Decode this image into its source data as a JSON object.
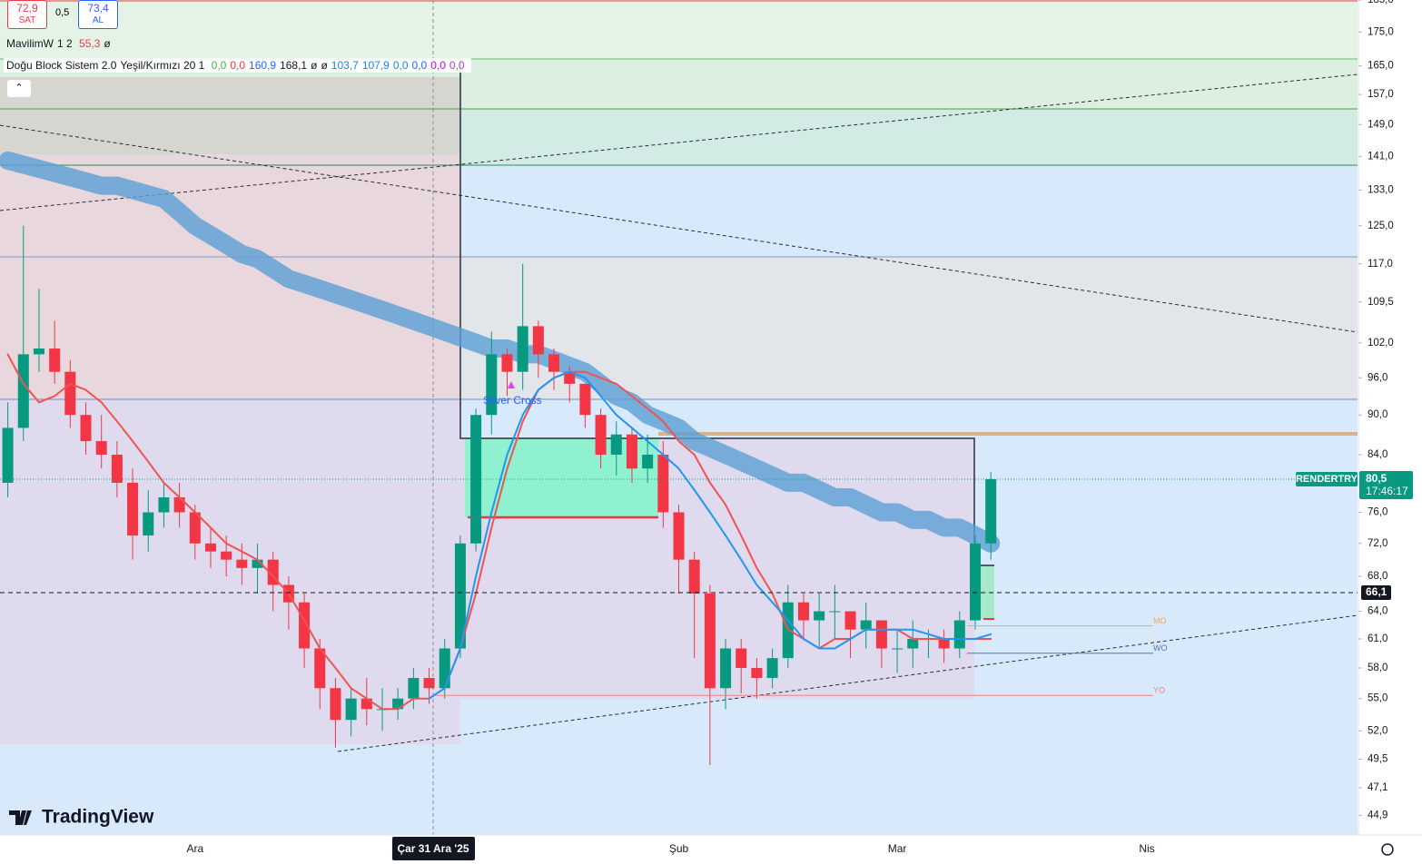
{
  "chart_data": {
    "type": "candlestick",
    "symbol": "RENDERTRY",
    "categories": [
      null,
      null,
      null,
      null,
      null,
      null,
      null,
      null,
      null,
      null,
      null,
      null,
      "Ara",
      null,
      null,
      null,
      null,
      null,
      null,
      null,
      null,
      null,
      null,
      null,
      null,
      null,
      null,
      "Çar 31 Ara '25",
      null,
      null,
      null,
      null,
      null,
      null,
      null,
      null,
      null,
      null,
      null,
      null,
      null,
      null,
      null,
      "Şub",
      null,
      null,
      null,
      null,
      null,
      null,
      null,
      null,
      null,
      null,
      null,
      null,
      null,
      "Mar",
      null,
      null,
      null,
      null,
      null,
      null,
      null,
      null,
      null,
      null,
      null,
      null,
      null,
      null,
      null,
      "Nis",
      null,
      null,
      null,
      null,
      null,
      null,
      null,
      null,
      null,
      null,
      null,
      null,
      null
    ],
    "open": [
      80,
      88,
      100,
      101,
      97,
      90,
      86,
      84,
      80,
      73,
      76,
      78,
      76,
      72,
      71,
      70,
      69,
      70,
      67,
      65,
      60,
      56,
      53,
      55,
      54,
      54,
      55,
      57,
      56,
      60,
      72,
      90,
      100,
      97,
      105,
      100,
      97,
      95,
      90,
      84,
      87,
      82,
      84,
      76,
      70,
      66,
      56,
      60,
      58,
      57,
      59,
      65,
      63,
      64,
      64,
      62,
      63,
      60,
      60,
      61,
      61,
      60,
      63,
      72,
      null,
      null,
      null,
      null,
      null,
      null,
      null,
      null,
      null,
      null,
      null,
      null,
      null,
      null,
      null,
      null,
      null,
      null,
      null,
      null,
      null,
      null,
      null
    ],
    "high": [
      92,
      125,
      112,
      106,
      99,
      92,
      90,
      86,
      82,
      79,
      80,
      80,
      77,
      74,
      73,
      72,
      72,
      71,
      68,
      66,
      61,
      57,
      56,
      57,
      56,
      56,
      58,
      58,
      61,
      73,
      91,
      104,
      101,
      117,
      106,
      101,
      98,
      95,
      91,
      89,
      88,
      87,
      86,
      77,
      71,
      67,
      61,
      61,
      59,
      60,
      67,
      66,
      66,
      67,
      64,
      65,
      63,
      62,
      63,
      62,
      62,
      64,
      73,
      81.5,
      null,
      null,
      null,
      null,
      null,
      null,
      null,
      null,
      null,
      null,
      null,
      null,
      null,
      null,
      null,
      null,
      null,
      null,
      null,
      null,
      null,
      null,
      null
    ],
    "low": [
      78,
      86,
      97,
      95,
      88,
      84,
      82,
      78,
      70,
      71,
      74,
      74,
      70,
      69,
      68,
      67,
      66,
      64,
      62,
      58,
      54,
      50.5,
      51.5,
      52.5,
      52,
      53,
      54,
      54.5,
      55,
      59,
      71,
      87,
      93,
      94,
      96,
      94,
      92,
      88,
      82,
      81,
      80,
      80,
      74,
      66,
      59,
      49,
      54,
      55.5,
      55,
      56,
      58,
      61,
      60,
      61,
      59,
      60,
      58,
      57.5,
      58,
      59,
      58.5,
      59,
      62,
      70,
      null,
      null,
      null,
      null,
      null,
      null,
      null,
      null,
      null,
      null,
      null,
      null,
      null,
      null,
      null,
      null,
      null,
      null,
      null,
      null,
      null,
      null,
      null
    ],
    "close": [
      88,
      100,
      101,
      97,
      90,
      86,
      84,
      80,
      73,
      76,
      78,
      76,
      72,
      71,
      70,
      69,
      70,
      67,
      65,
      60,
      56,
      53,
      55,
      54,
      54,
      55,
      57,
      56,
      60,
      72,
      90,
      100,
      97,
      105,
      100,
      97,
      95,
      90,
      84,
      87,
      82,
      84,
      76,
      70,
      66,
      56,
      60,
      58,
      57,
      59,
      65,
      63,
      64,
      64,
      62,
      63,
      60,
      60,
      61,
      61,
      60,
      63,
      72,
      80.5,
      null,
      null,
      null,
      null,
      null,
      null,
      null,
      null,
      null,
      null,
      null,
      null,
      null,
      null,
      null,
      null,
      null,
      null,
      null,
      null,
      null,
      null,
      null
    ],
    "up_color": "#089981",
    "down_color": "#f23645",
    "overlays": [
      {
        "kind": "ribbon",
        "color": "#5b9fd4",
        "values": [
          140,
          139,
          138,
          137,
          136,
          135,
          134,
          134,
          133,
          132,
          131,
          128,
          125,
          123,
          121,
          119,
          118,
          116,
          114,
          113,
          112,
          111,
          110,
          109,
          108,
          107,
          106,
          105,
          104,
          103,
          102,
          101,
          101,
          100,
          100,
          99,
          98,
          97,
          95,
          93,
          92,
          90,
          89,
          88,
          86,
          85,
          84,
          83,
          82,
          81,
          80,
          80,
          79,
          78,
          78,
          77,
          76,
          76,
          75,
          75,
          74,
          74,
          73,
          72,
          null,
          null,
          null,
          null,
          null,
          null,
          null,
          null,
          null,
          null,
          null,
          null,
          null,
          null,
          null,
          null,
          null,
          null,
          null,
          null,
          null,
          null,
          null
        ]
      },
      {
        "kind": "line",
        "color": "#f05350",
        "values": [
          100,
          95,
          92,
          93,
          95,
          94,
          92,
          89,
          86,
          83,
          80,
          78,
          76,
          74,
          72,
          71,
          70,
          68,
          66,
          63,
          60,
          58,
          56,
          55,
          54,
          54,
          55,
          55,
          56,
          60,
          66,
          74,
          82,
          89,
          94,
          96,
          97,
          97,
          96,
          95,
          93,
          91,
          89,
          86,
          84,
          80,
          77,
          73,
          69,
          66,
          62,
          61,
          60,
          61,
          61,
          62,
          62,
          62,
          61,
          61,
          61,
          61,
          61,
          61,
          null,
          null,
          null,
          null,
          null,
          null,
          null,
          null,
          null,
          null,
          null,
          null,
          null,
          null,
          null,
          null,
          null,
          null,
          null,
          null,
          null,
          null,
          null
        ]
      },
      {
        "kind": "line",
        "color": "#2196f3",
        "values": [
          null,
          null,
          null,
          null,
          null,
          null,
          null,
          null,
          null,
          null,
          null,
          null,
          null,
          null,
          null,
          null,
          null,
          null,
          null,
          null,
          null,
          null,
          null,
          null,
          null,
          null,
          null,
          55,
          56,
          60,
          68,
          76,
          84,
          90,
          94,
          96,
          97,
          96,
          93,
          90,
          88,
          86,
          84,
          82,
          79,
          76,
          73,
          70,
          67,
          65,
          63,
          61,
          60,
          60,
          61,
          62,
          62,
          62,
          62,
          61.5,
          61,
          61,
          61,
          61.5,
          null,
          null,
          null,
          null,
          null,
          null,
          null,
          null,
          null,
          null,
          null,
          null,
          null,
          null,
          null,
          null,
          null,
          null,
          null,
          null,
          null,
          null,
          null
        ]
      }
    ],
    "ylim": [
      43.4,
      185
    ],
    "log": true,
    "grid": false,
    "yticks": [
      {
        "value": 185,
        "label": "185,0"
      },
      {
        "value": 175,
        "label": "175,0"
      },
      {
        "value": 165,
        "label": "165,0"
      },
      {
        "value": 157,
        "label": "157,0"
      },
      {
        "value": 149,
        "label": "149,0"
      },
      {
        "value": 141,
        "label": "141,0"
      },
      {
        "value": 133,
        "label": "133,0"
      },
      {
        "value": 125,
        "label": "125,0"
      },
      {
        "value": 117,
        "label": "117,0"
      },
      {
        "value": 109.5,
        "label": "109,5"
      },
      {
        "value": 102,
        "label": "102,0"
      },
      {
        "value": 96,
        "label": "96,0"
      },
      {
        "value": 90,
        "label": "90,0"
      },
      {
        "value": 84,
        "label": "84,0"
      },
      {
        "value": 76,
        "label": "76,0"
      },
      {
        "value": 72,
        "label": "72,0"
      },
      {
        "value": 68,
        "label": "68,0"
      },
      {
        "value": 64,
        "label": "64,0"
      },
      {
        "value": 61,
        "label": "61,0"
      },
      {
        "value": 58,
        "label": "58,0"
      },
      {
        "value": 55,
        "label": "55,0"
      },
      {
        "value": 52,
        "label": "52,0"
      },
      {
        "value": 49.5,
        "label": "49,5"
      },
      {
        "value": 47.1,
        "label": "47,1"
      },
      {
        "value": 44.9,
        "label": "44,9"
      }
    ],
    "last_price": {
      "value": 80.5,
      "label": "80,5"
    },
    "countdown": "17:46:17",
    "level": {
      "value": 66.1,
      "label": "66,1"
    },
    "levels": [
      {
        "name": "MO",
        "value": 62.4,
        "color": "#f7a35c"
      },
      {
        "name": "WO",
        "value": 59.5,
        "color": "#4a78c0"
      },
      {
        "name": "YO",
        "value": 55.3,
        "color": "#f08080"
      }
    ],
    "annotation": "Silver Cross"
  },
  "toolbar": {
    "sell": {
      "price": "72,9",
      "label": "SAT"
    },
    "spread": "0,5",
    "buy": {
      "price": "73,4",
      "label": "AL"
    }
  },
  "legend": {
    "line1": {
      "name": "MavilimW",
      "params": "1 2",
      "items": [
        {
          "text": "55,3",
          "color": "#f23645"
        },
        {
          "text": "ø",
          "color": "#131722"
        }
      ]
    },
    "line2": {
      "name": "Doğu Block Sistem 2.0",
      "params": "Yeşil/Kırmızı 20 1",
      "items": [
        {
          "text": "0,0",
          "color": "#4caf50"
        },
        {
          "text": "0,0",
          "color": "#f23645"
        },
        {
          "text": "160,9",
          "color": "#2962ff"
        },
        {
          "text": "168,1",
          "color": "#131722"
        },
        {
          "text": "ø",
          "color": "#131722"
        },
        {
          "text": "ø",
          "color": "#131722"
        },
        {
          "text": "103,7",
          "color": "#1e88e5"
        },
        {
          "text": "107,9",
          "color": "#1e88e5"
        },
        {
          "text": "0,0",
          "color": "#1e88e5"
        },
        {
          "text": "0,0",
          "color": "#2962ff"
        },
        {
          "text": "0,0",
          "color": "#d500f9"
        },
        {
          "text": "0,0",
          "color": "#ab47bc"
        }
      ]
    }
  },
  "logo": "TradingView"
}
